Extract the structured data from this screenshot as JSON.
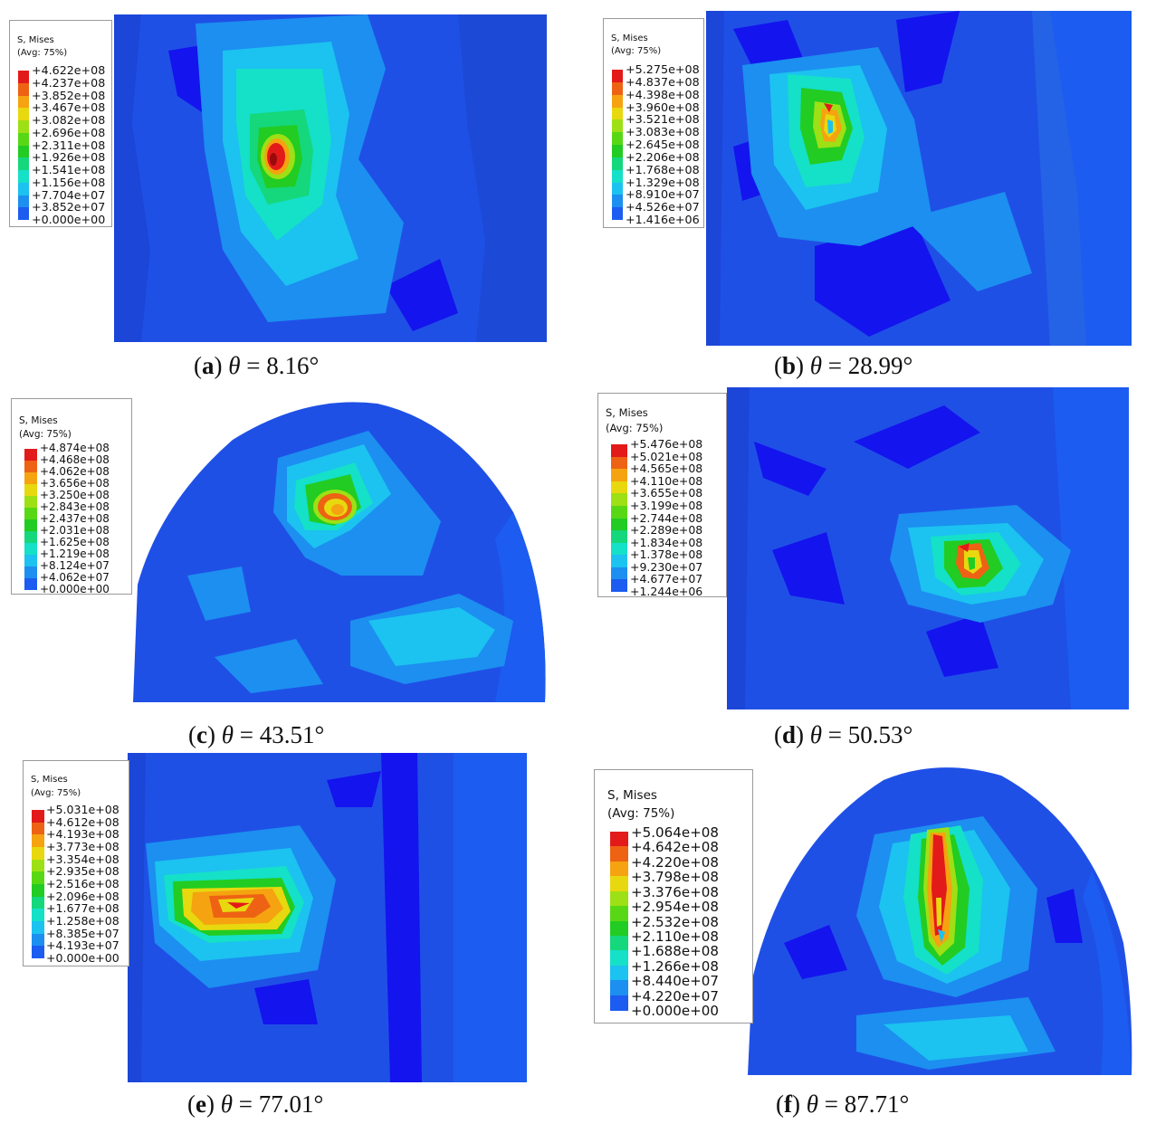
{
  "colormap": [
    "#1414ee",
    "#1c5cf0",
    "#1c8ff0",
    "#1cc2f0",
    "#15e0c8",
    "#15d77c",
    "#22cc22",
    "#58d815",
    "#9de015",
    "#e8d80f",
    "#f5a310",
    "#ee6214",
    "#e31a1a"
  ],
  "background_blue": "#1f50e6",
  "panels": [
    {
      "id": "a",
      "legend": {
        "title1": "S, Mises",
        "title2": "(Avg: 75%)",
        "values": [
          "+4.622e+08",
          "+4.237e+08",
          "+3.852e+08",
          "+3.467e+08",
          "+3.082e+08",
          "+2.696e+08",
          "+2.311e+08",
          "+1.926e+08",
          "+1.541e+08",
          "+1.156e+08",
          "+7.704e+07",
          "+3.852e+07",
          "+0.000e+00"
        ]
      },
      "caption": {
        "letter": "a",
        "theta": "θ",
        "value": " = 8.16°"
      }
    },
    {
      "id": "b",
      "legend": {
        "title1": "S, Mises",
        "title2": "(Avg: 75%)",
        "values": [
          "+5.275e+08",
          "+4.837e+08",
          "+4.398e+08",
          "+3.960e+08",
          "+3.521e+08",
          "+3.083e+08",
          "+2.645e+08",
          "+2.206e+08",
          "+1.768e+08",
          "+1.329e+08",
          "+8.910e+07",
          "+4.526e+07",
          "+1.416e+06"
        ]
      },
      "caption": {
        "letter": "b",
        "theta": "θ",
        "value": " = 28.99°"
      }
    },
    {
      "id": "c",
      "legend": {
        "title1": "S, Mises",
        "title2": "(Avg: 75%)",
        "values": [
          "+4.874e+08",
          "+4.468e+08",
          "+4.062e+08",
          "+3.656e+08",
          "+3.250e+08",
          "+2.843e+08",
          "+2.437e+08",
          "+2.031e+08",
          "+1.625e+08",
          "+1.219e+08",
          "+8.124e+07",
          "+4.062e+07",
          "+0.000e+00"
        ]
      },
      "caption": {
        "letter": "c",
        "theta": "θ",
        "value": " = 43.51°"
      }
    },
    {
      "id": "d",
      "legend": {
        "title1": "S, Mises",
        "title2": "(Avg: 75%)",
        "values": [
          "+5.476e+08",
          "+5.021e+08",
          "+4.565e+08",
          "+4.110e+08",
          "+3.655e+08",
          "+3.199e+08",
          "+2.744e+08",
          "+2.289e+08",
          "+1.834e+08",
          "+1.378e+08",
          "+9.230e+07",
          "+4.677e+07",
          "+1.244e+06"
        ]
      },
      "caption": {
        "letter": "d",
        "theta": "θ",
        "value": " = 50.53°"
      }
    },
    {
      "id": "e",
      "legend": {
        "title1": "S, Mises",
        "title2": "(Avg: 75%)",
        "values": [
          "+5.031e+08",
          "+4.612e+08",
          "+4.193e+08",
          "+3.773e+08",
          "+3.354e+08",
          "+2.935e+08",
          "+2.516e+08",
          "+2.096e+08",
          "+1.677e+08",
          "+1.258e+08",
          "+8.385e+07",
          "+4.193e+07",
          "+0.000e+00"
        ]
      },
      "caption": {
        "letter": "e",
        "theta": "θ",
        "value": " = 77.01°"
      }
    },
    {
      "id": "f",
      "legend": {
        "title1": "S, Mises",
        "title2": "(Avg: 75%)",
        "values": [
          "+5.064e+08",
          "+4.642e+08",
          "+4.220e+08",
          "+3.798e+08",
          "+3.376e+08",
          "+2.954e+08",
          "+2.532e+08",
          "+2.110e+08",
          "+1.688e+08",
          "+1.266e+08",
          "+8.440e+07",
          "+4.220e+07",
          "+0.000e+00"
        ]
      },
      "caption": {
        "letter": "f",
        "theta": "θ",
        "value": " = 87.71°"
      }
    }
  ]
}
